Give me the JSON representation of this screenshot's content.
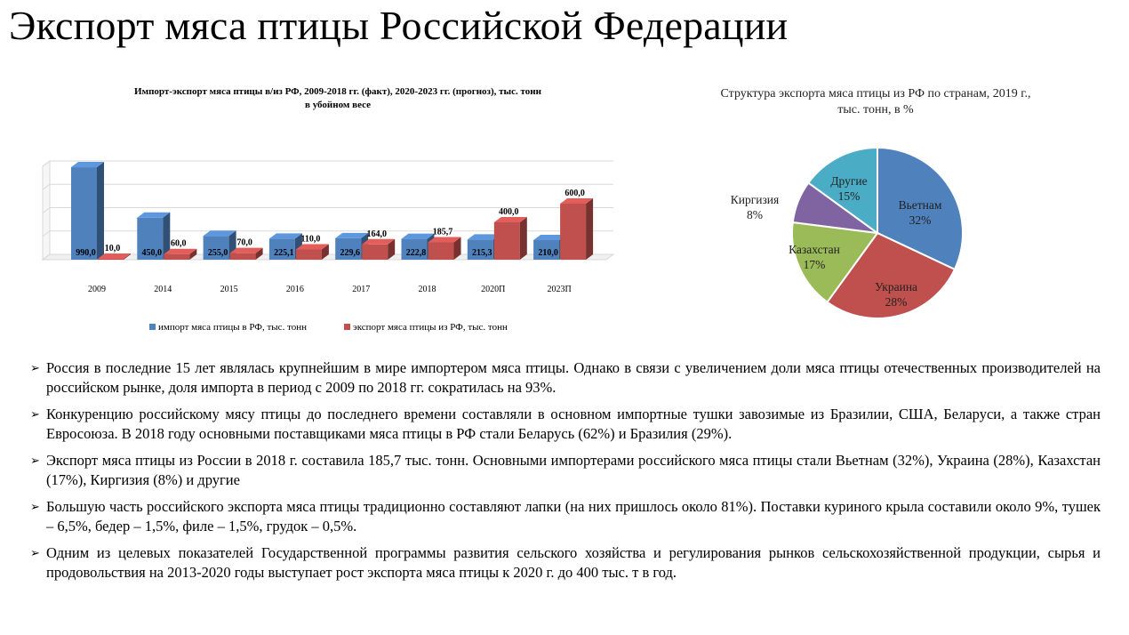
{
  "slide": {
    "title": "Экспорт мяса птицы Российской Федерации"
  },
  "chart_data": [
    {
      "type": "bar",
      "title": "Импорт-экспорт мяса птицы в/из РФ, 2009-2018 гг. (факт), 2020-2023 гг. (прогноз), тыс. тонн в убойном весе",
      "categories": [
        "2009",
        "2014",
        "2015",
        "2016",
        "2017",
        "2018",
        "2020П",
        "2023П"
      ],
      "series": [
        {
          "name": "импорт мяса птицы в РФ, тыс. тонн",
          "values": [
            990.0,
            450.0,
            255.0,
            225.1,
            229.6,
            222.8,
            215.3,
            210.0
          ],
          "labels": [
            "990,0",
            "450,0",
            "255,0",
            "225,1",
            "229,6",
            "222,8",
            "215,3",
            "210,0"
          ],
          "color": "#4F81BD"
        },
        {
          "name": "экспорт мяса птицы из РФ, тыс. тонн",
          "values": [
            10.0,
            60.0,
            70.0,
            110.0,
            164.0,
            185.7,
            400.0,
            600.0
          ],
          "labels": [
            "10,0",
            "60,0",
            "70,0",
            "110,0",
            "164,0",
            "185,7",
            "400,0",
            "600,0"
          ],
          "color": "#C0504D"
        }
      ],
      "ylim": [
        0,
        1000
      ],
      "grid": true,
      "legend": "bottom"
    },
    {
      "type": "pie",
      "title": "Структура экспорта мяса птицы из РФ по странам, 2019 г., тыс. тонн, в %",
      "categories": [
        "Вьетнам",
        "Украина",
        "Казахстан",
        "Киргизия",
        "Другие"
      ],
      "values": [
        32,
        28,
        17,
        8,
        15
      ],
      "labels": [
        "32%",
        "28%",
        "17%",
        "8%",
        "15%"
      ],
      "colors": [
        "#4F81BD",
        "#C0504D",
        "#9BBB59",
        "#8064A2",
        "#4BACC6"
      ]
    }
  ],
  "bullets": [
    {
      "marker": "➢",
      "text": "Россия в последние 15 лет являлась крупнейшим в мире импортером мяса птицы. Однако в связи с увеличением доли мяса птицы отечественных производителей на российском рынке, доля импорта в период с 2009 по 2018 гг. сократилась на 93%."
    },
    {
      "marker": "➢",
      "text": "Конкуренцию российскому мясу птицы до последнего времени составляли в основном импортные тушки завозимые из Бразилии, США, Беларуси, а также стран Евросоюза. В 2018 году основными поставщиками мяса птицы в РФ стали Беларусь (62%) и Бразилия (29%)."
    },
    {
      "marker": "➢",
      "text": "Экспорт мяса птицы из России в 2018 г. составила 185,7 тыс. тонн. Основными импортерами российского мяса птицы стали Вьетнам (32%), Украина (28%), Казахстан (17%), Киргизия (8%) и другие"
    },
    {
      "marker": "➢",
      "text": "Большую часть российского экспорта мяса птицы традиционно составляют лапки (на них пришлось около 81%). Поставки куриного крыла составили около 9%, тушек – 6,5%, бедер – 1,5%, филе – 1,5%, грудок – 0,5%."
    },
    {
      "marker": "➢",
      "text": "Одним из целевых показателей Государственной программы развития сельского хозяйства и регулирования рынков сельскохозяйственной продукции, сырья и продовольствия на 2013-2020 годы выступает рост экспорта мяса птицы к 2020 г. до 400 тыс. т в год."
    }
  ]
}
